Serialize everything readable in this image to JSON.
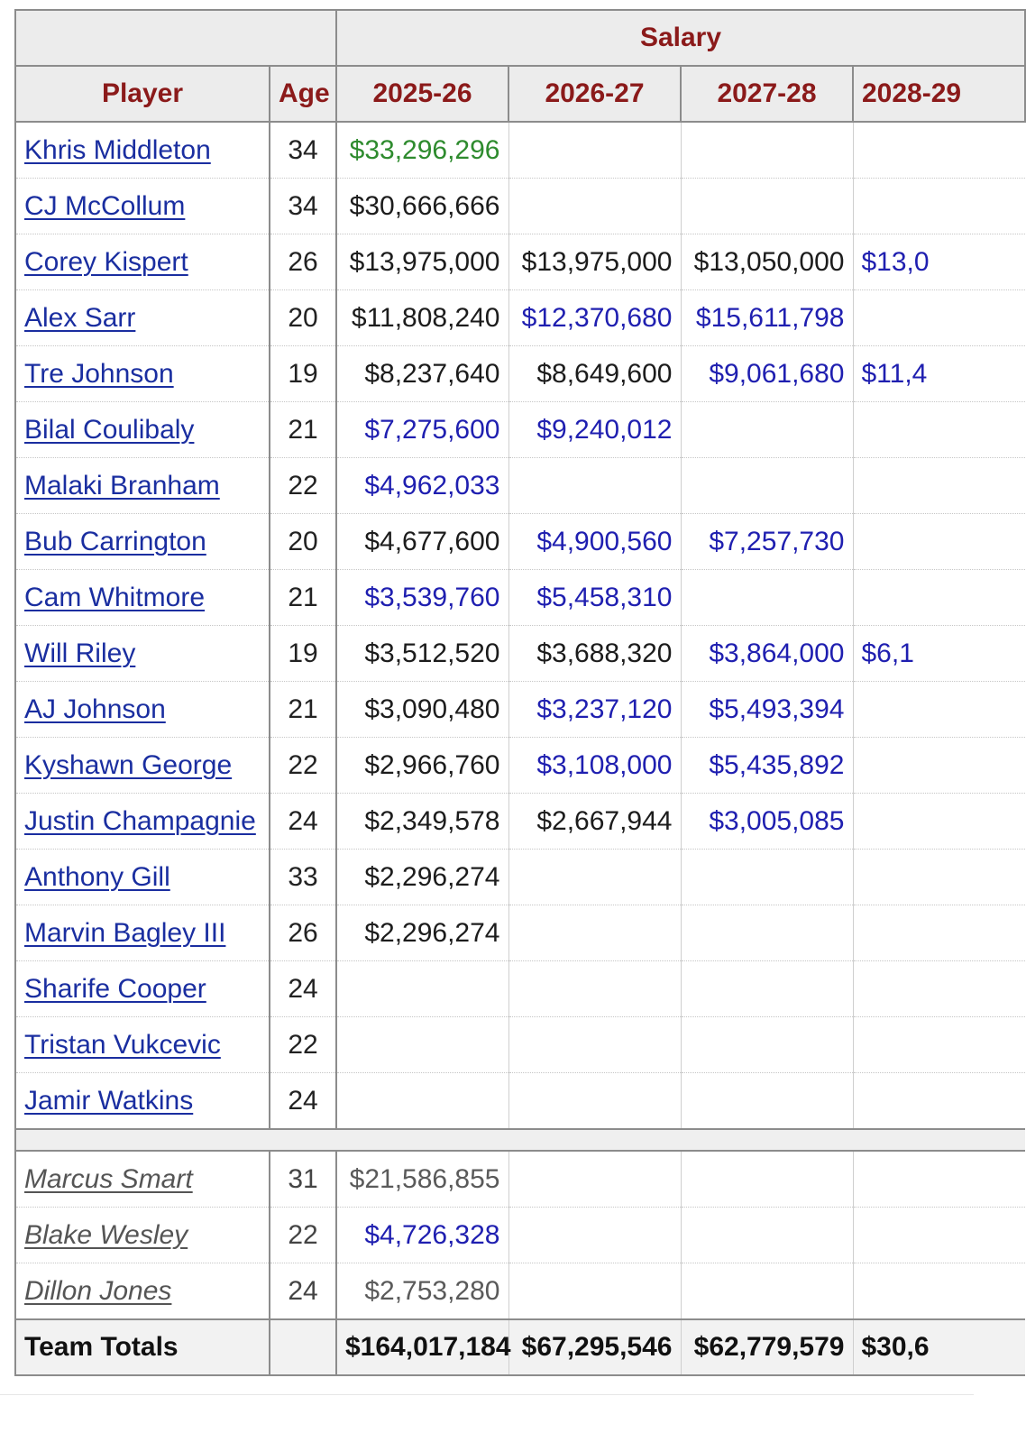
{
  "header": {
    "salary_group": "Salary",
    "player": "Player",
    "age": "Age",
    "seasons": [
      "2025-26",
      "2026-27",
      "2027-28",
      "2028-29"
    ]
  },
  "colors": {
    "header_text": "#8b1a1a",
    "link_blue": "#1a2ea0",
    "guaranteed_black": "#1c1c1c",
    "green": "#2e8b2e",
    "option_blue": "#1f1fb0",
    "dead_grey": "#5a5a5a"
  },
  "players": [
    {
      "name": "Khris Middleton",
      "age": "34",
      "salaries": [
        {
          "v": "$33,296,296",
          "c": "green"
        },
        {
          "v": "",
          "c": "black"
        },
        {
          "v": "",
          "c": "black"
        },
        {
          "v": "",
          "c": "black"
        }
      ]
    },
    {
      "name": "CJ McCollum",
      "age": "34",
      "salaries": [
        {
          "v": "$30,666,666",
          "c": "black"
        },
        {
          "v": "",
          "c": "black"
        },
        {
          "v": "",
          "c": "black"
        },
        {
          "v": "",
          "c": "black"
        }
      ]
    },
    {
      "name": "Corey Kispert",
      "age": "26",
      "salaries": [
        {
          "v": "$13,975,000",
          "c": "black"
        },
        {
          "v": "$13,975,000",
          "c": "black"
        },
        {
          "v": "$13,050,000",
          "c": "black"
        },
        {
          "v": "$13,0",
          "c": "blue"
        }
      ]
    },
    {
      "name": "Alex Sarr",
      "age": "20",
      "salaries": [
        {
          "v": "$11,808,240",
          "c": "black"
        },
        {
          "v": "$12,370,680",
          "c": "blue"
        },
        {
          "v": "$15,611,798",
          "c": "blue"
        },
        {
          "v": "",
          "c": "black"
        }
      ]
    },
    {
      "name": "Tre Johnson",
      "age": "19",
      "salaries": [
        {
          "v": "$8,237,640",
          "c": "black"
        },
        {
          "v": "$8,649,600",
          "c": "black"
        },
        {
          "v": "$9,061,680",
          "c": "blue"
        },
        {
          "v": "$11,4",
          "c": "blue"
        }
      ]
    },
    {
      "name": "Bilal Coulibaly",
      "age": "21",
      "salaries": [
        {
          "v": "$7,275,600",
          "c": "blue"
        },
        {
          "v": "$9,240,012",
          "c": "blue"
        },
        {
          "v": "",
          "c": "black"
        },
        {
          "v": "",
          "c": "black"
        }
      ]
    },
    {
      "name": "Malaki Branham",
      "age": "22",
      "salaries": [
        {
          "v": "$4,962,033",
          "c": "blue"
        },
        {
          "v": "",
          "c": "black"
        },
        {
          "v": "",
          "c": "black"
        },
        {
          "v": "",
          "c": "black"
        }
      ]
    },
    {
      "name": "Bub Carrington",
      "age": "20",
      "salaries": [
        {
          "v": "$4,677,600",
          "c": "black"
        },
        {
          "v": "$4,900,560",
          "c": "blue"
        },
        {
          "v": "$7,257,730",
          "c": "blue"
        },
        {
          "v": "",
          "c": "black"
        }
      ]
    },
    {
      "name": "Cam Whitmore",
      "age": "21",
      "salaries": [
        {
          "v": "$3,539,760",
          "c": "blue"
        },
        {
          "v": "$5,458,310",
          "c": "blue"
        },
        {
          "v": "",
          "c": "black"
        },
        {
          "v": "",
          "c": "black"
        }
      ]
    },
    {
      "name": "Will Riley",
      "age": "19",
      "salaries": [
        {
          "v": "$3,512,520",
          "c": "black"
        },
        {
          "v": "$3,688,320",
          "c": "black"
        },
        {
          "v": "$3,864,000",
          "c": "blue"
        },
        {
          "v": "$6,1",
          "c": "blue"
        }
      ]
    },
    {
      "name": "AJ Johnson",
      "age": "21",
      "salaries": [
        {
          "v": "$3,090,480",
          "c": "black"
        },
        {
          "v": "$3,237,120",
          "c": "blue"
        },
        {
          "v": "$5,493,394",
          "c": "blue"
        },
        {
          "v": "",
          "c": "black"
        }
      ]
    },
    {
      "name": "Kyshawn George",
      "age": "22",
      "salaries": [
        {
          "v": "$2,966,760",
          "c": "black"
        },
        {
          "v": "$3,108,000",
          "c": "blue"
        },
        {
          "v": "$5,435,892",
          "c": "blue"
        },
        {
          "v": "",
          "c": "black"
        }
      ]
    },
    {
      "name": "Justin Champagnie",
      "age": "24",
      "salaries": [
        {
          "v": "$2,349,578",
          "c": "black"
        },
        {
          "v": "$2,667,944",
          "c": "black"
        },
        {
          "v": "$3,005,085",
          "c": "blue"
        },
        {
          "v": "",
          "c": "black"
        }
      ]
    },
    {
      "name": "Anthony Gill",
      "age": "33",
      "salaries": [
        {
          "v": "$2,296,274",
          "c": "black"
        },
        {
          "v": "",
          "c": "black"
        },
        {
          "v": "",
          "c": "black"
        },
        {
          "v": "",
          "c": "black"
        }
      ]
    },
    {
      "name": "Marvin Bagley III",
      "age": "26",
      "salaries": [
        {
          "v": "$2,296,274",
          "c": "black"
        },
        {
          "v": "",
          "c": "black"
        },
        {
          "v": "",
          "c": "black"
        },
        {
          "v": "",
          "c": "black"
        }
      ]
    },
    {
      "name": "Sharife Cooper",
      "age": "24",
      "salaries": [
        {
          "v": "",
          "c": "black"
        },
        {
          "v": "",
          "c": "black"
        },
        {
          "v": "",
          "c": "black"
        },
        {
          "v": "",
          "c": "black"
        }
      ]
    },
    {
      "name": "Tristan Vukcevic",
      "age": "22",
      "salaries": [
        {
          "v": "",
          "c": "black"
        },
        {
          "v": "",
          "c": "black"
        },
        {
          "v": "",
          "c": "black"
        },
        {
          "v": "",
          "c": "black"
        }
      ]
    },
    {
      "name": "Jamir Watkins",
      "age": "24",
      "salaries": [
        {
          "v": "",
          "c": "black"
        },
        {
          "v": "",
          "c": "black"
        },
        {
          "v": "",
          "c": "black"
        },
        {
          "v": "",
          "c": "black"
        }
      ]
    }
  ],
  "dead_money": [
    {
      "name": "Marcus Smart",
      "age": "31",
      "salaries": [
        {
          "v": "$21,586,855",
          "c": "grey"
        },
        {
          "v": "",
          "c": "grey"
        },
        {
          "v": "",
          "c": "grey"
        },
        {
          "v": "",
          "c": "grey"
        }
      ]
    },
    {
      "name": "Blake Wesley",
      "age": "22",
      "salaries": [
        {
          "v": "$4,726,328",
          "c": "blue"
        },
        {
          "v": "",
          "c": "grey"
        },
        {
          "v": "",
          "c": "grey"
        },
        {
          "v": "",
          "c": "grey"
        }
      ]
    },
    {
      "name": "Dillon Jones",
      "age": "24",
      "salaries": [
        {
          "v": "$2,753,280",
          "c": "grey"
        },
        {
          "v": "",
          "c": "grey"
        },
        {
          "v": "",
          "c": "grey"
        },
        {
          "v": "",
          "c": "grey"
        }
      ]
    }
  ],
  "totals": {
    "label": "Team Totals",
    "values": [
      "$164,017,184",
      "$67,295,546",
      "$62,779,579",
      "$30,6"
    ]
  }
}
